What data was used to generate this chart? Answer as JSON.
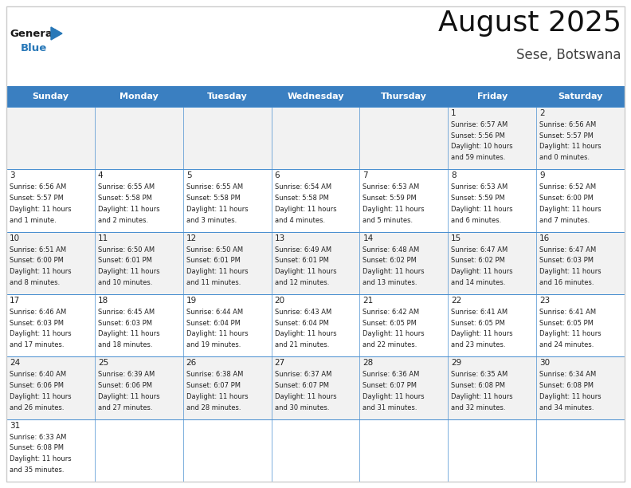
{
  "title": "August 2025",
  "subtitle": "Sese, Botswana",
  "days_of_week": [
    "Sunday",
    "Monday",
    "Tuesday",
    "Wednesday",
    "Thursday",
    "Friday",
    "Saturday"
  ],
  "header_bg": "#3a7fc1",
  "header_text": "#FFFFFF",
  "cell_bg_light": "#f2f2f2",
  "cell_bg_white": "#FFFFFF",
  "cell_border": "#4a8fd0",
  "outer_border": "#cccccc",
  "text_color": "#222222",
  "day_num_color": "#222222",
  "title_color": "#111111",
  "subtitle_color": "#444444",
  "logo_general_color": "#1a1a1a",
  "logo_blue_color": "#2878b8",
  "calendar": [
    [
      null,
      null,
      null,
      null,
      null,
      {
        "day": 1,
        "sunrise": "6:57 AM",
        "sunset": "5:56 PM",
        "daylight": "10 hours and 59 minutes."
      },
      {
        "day": 2,
        "sunrise": "6:56 AM",
        "sunset": "5:57 PM",
        "daylight": "11 hours and 0 minutes."
      }
    ],
    [
      {
        "day": 3,
        "sunrise": "6:56 AM",
        "sunset": "5:57 PM",
        "daylight": "11 hours and 1 minute."
      },
      {
        "day": 4,
        "sunrise": "6:55 AM",
        "sunset": "5:58 PM",
        "daylight": "11 hours and 2 minutes."
      },
      {
        "day": 5,
        "sunrise": "6:55 AM",
        "sunset": "5:58 PM",
        "daylight": "11 hours and 3 minutes."
      },
      {
        "day": 6,
        "sunrise": "6:54 AM",
        "sunset": "5:58 PM",
        "daylight": "11 hours and 4 minutes."
      },
      {
        "day": 7,
        "sunrise": "6:53 AM",
        "sunset": "5:59 PM",
        "daylight": "11 hours and 5 minutes."
      },
      {
        "day": 8,
        "sunrise": "6:53 AM",
        "sunset": "5:59 PM",
        "daylight": "11 hours and 6 minutes."
      },
      {
        "day": 9,
        "sunrise": "6:52 AM",
        "sunset": "6:00 PM",
        "daylight": "11 hours and 7 minutes."
      }
    ],
    [
      {
        "day": 10,
        "sunrise": "6:51 AM",
        "sunset": "6:00 PM",
        "daylight": "11 hours and 8 minutes."
      },
      {
        "day": 11,
        "sunrise": "6:50 AM",
        "sunset": "6:01 PM",
        "daylight": "11 hours and 10 minutes."
      },
      {
        "day": 12,
        "sunrise": "6:50 AM",
        "sunset": "6:01 PM",
        "daylight": "11 hours and 11 minutes."
      },
      {
        "day": 13,
        "sunrise": "6:49 AM",
        "sunset": "6:01 PM",
        "daylight": "11 hours and 12 minutes."
      },
      {
        "day": 14,
        "sunrise": "6:48 AM",
        "sunset": "6:02 PM",
        "daylight": "11 hours and 13 minutes."
      },
      {
        "day": 15,
        "sunrise": "6:47 AM",
        "sunset": "6:02 PM",
        "daylight": "11 hours and 14 minutes."
      },
      {
        "day": 16,
        "sunrise": "6:47 AM",
        "sunset": "6:03 PM",
        "daylight": "11 hours and 16 minutes."
      }
    ],
    [
      {
        "day": 17,
        "sunrise": "6:46 AM",
        "sunset": "6:03 PM",
        "daylight": "11 hours and 17 minutes."
      },
      {
        "day": 18,
        "sunrise": "6:45 AM",
        "sunset": "6:03 PM",
        "daylight": "11 hours and 18 minutes."
      },
      {
        "day": 19,
        "sunrise": "6:44 AM",
        "sunset": "6:04 PM",
        "daylight": "11 hours and 19 minutes."
      },
      {
        "day": 20,
        "sunrise": "6:43 AM",
        "sunset": "6:04 PM",
        "daylight": "11 hours and 21 minutes."
      },
      {
        "day": 21,
        "sunrise": "6:42 AM",
        "sunset": "6:05 PM",
        "daylight": "11 hours and 22 minutes."
      },
      {
        "day": 22,
        "sunrise": "6:41 AM",
        "sunset": "6:05 PM",
        "daylight": "11 hours and 23 minutes."
      },
      {
        "day": 23,
        "sunrise": "6:41 AM",
        "sunset": "6:05 PM",
        "daylight": "11 hours and 24 minutes."
      }
    ],
    [
      {
        "day": 24,
        "sunrise": "6:40 AM",
        "sunset": "6:06 PM",
        "daylight": "11 hours and 26 minutes."
      },
      {
        "day": 25,
        "sunrise": "6:39 AM",
        "sunset": "6:06 PM",
        "daylight": "11 hours and 27 minutes."
      },
      {
        "day": 26,
        "sunrise": "6:38 AM",
        "sunset": "6:07 PM",
        "daylight": "11 hours and 28 minutes."
      },
      {
        "day": 27,
        "sunrise": "6:37 AM",
        "sunset": "6:07 PM",
        "daylight": "11 hours and 30 minutes."
      },
      {
        "day": 28,
        "sunrise": "6:36 AM",
        "sunset": "6:07 PM",
        "daylight": "11 hours and 31 minutes."
      },
      {
        "day": 29,
        "sunrise": "6:35 AM",
        "sunset": "6:08 PM",
        "daylight": "11 hours and 32 minutes."
      },
      {
        "day": 30,
        "sunrise": "6:34 AM",
        "sunset": "6:08 PM",
        "daylight": "11 hours and 34 minutes."
      }
    ],
    [
      {
        "day": 31,
        "sunrise": "6:33 AM",
        "sunset": "6:08 PM",
        "daylight": "11 hours and 35 minutes."
      },
      null,
      null,
      null,
      null,
      null,
      null
    ]
  ]
}
